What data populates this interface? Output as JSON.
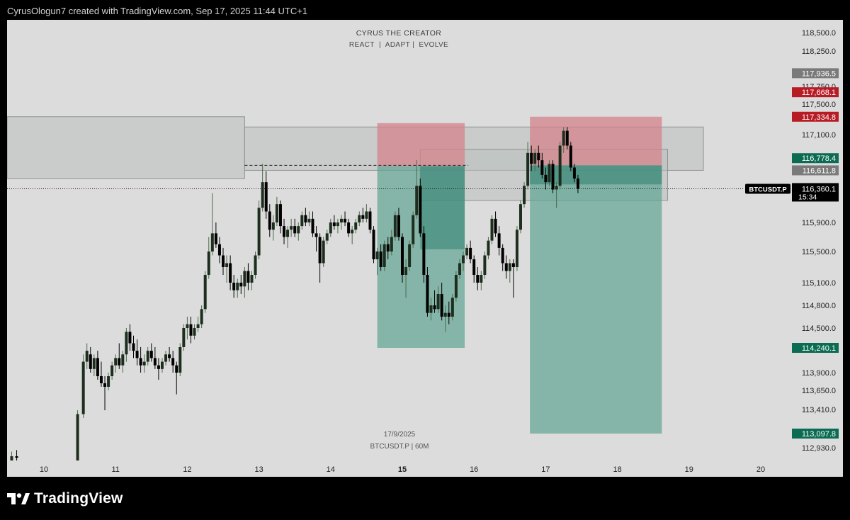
{
  "header": {
    "attribution": "CyrusOlogun7 created with TradingView.com, Sep 17, 2025 11:44 UTC+1"
  },
  "watermark": {
    "title": "CYRUS THE CREATOR",
    "subtitle": "REACT  |  ADAPT |  EVOLVE"
  },
  "footer": {
    "brand": "TradingView",
    "logo_icon": "tradingview-logo-icon"
  },
  "chart_data": {
    "type": "candlestick",
    "symbol_label": "BTCUSDT.P",
    "last_price": "116,360.1",
    "countdown": "15:34",
    "bottom_label_date": "17/9/2025",
    "bottom_label_symbol": "BTCUSDT.P | 60M",
    "x_ticks": [
      {
        "label": "10",
        "day": 10,
        "bold": false
      },
      {
        "label": "11",
        "day": 11,
        "bold": false
      },
      {
        "label": "12",
        "day": 12,
        "bold": false
      },
      {
        "label": "13",
        "day": 13,
        "bold": false
      },
      {
        "label": "14",
        "day": 14,
        "bold": false
      },
      {
        "label": "15",
        "day": 15,
        "bold": true
      },
      {
        "label": "16",
        "day": 16,
        "bold": false
      },
      {
        "label": "17",
        "day": 17,
        "bold": false
      },
      {
        "label": "18",
        "day": 18,
        "bold": false
      },
      {
        "label": "19",
        "day": 19,
        "bold": false
      },
      {
        "label": "20",
        "day": 20,
        "bold": false
      }
    ],
    "y_ticks": [
      {
        "label": "118,500.0",
        "price": 118500
      },
      {
        "label": "118,250.0",
        "price": 118250
      },
      {
        "label": "117,750.0",
        "price": 117750
      },
      {
        "label": "117,500.0",
        "price": 117500
      },
      {
        "label": "117,100.0",
        "price": 117100
      },
      {
        "label": "115,900.0",
        "price": 115900
      },
      {
        "label": "115,500.0",
        "price": 115500
      },
      {
        "label": "115,100.0",
        "price": 115100
      },
      {
        "label": "114,800.0",
        "price": 114800
      },
      {
        "label": "114,500.0",
        "price": 114500
      },
      {
        "label": "113,900.0",
        "price": 113900
      },
      {
        "label": "113,650.0",
        "price": 113650
      },
      {
        "label": "113,410.0",
        "price": 113410
      },
      {
        "label": "112,930.0",
        "price": 112930
      }
    ],
    "price_tags": [
      {
        "label": "117,936.5",
        "price": 117936.5,
        "color": "#7a7a7a"
      },
      {
        "label": "117,668.1",
        "price": 117668.1,
        "color": "#b71c25"
      },
      {
        "label": "117,334.8",
        "price": 117334.8,
        "color": "#b71c25"
      },
      {
        "label": "116,778.4",
        "price": 116778.4,
        "color": "#0b6b53"
      },
      {
        "label": "116,611.8",
        "price": 116611.8,
        "color": "#7a7a7a"
      },
      {
        "label": "114,240.1",
        "price": 114240.1,
        "color": "#0b6b53"
      },
      {
        "label": "113,097.8",
        "price": 113097.8,
        "color": "#0b6b53"
      }
    ],
    "zones": [
      {
        "name": "supply-zone-left",
        "day0": 9.5,
        "day1": 12.8,
        "top": 117334.8,
        "bottom": 116500,
        "kind": "gray"
      },
      {
        "name": "supply-zone-wide",
        "day0": 12.8,
        "day1": 19.2,
        "top": 117200,
        "bottom": 116611.8,
        "kind": "gray"
      },
      {
        "name": "supply-zone-inner",
        "day0": 15.25,
        "day1": 18.7,
        "top": 116900,
        "bottom": 116200,
        "kind": "gray"
      },
      {
        "name": "trade1-stop",
        "day0": 14.65,
        "day1": 15.87,
        "top": 117250,
        "bottom": 116670,
        "kind": "stop"
      },
      {
        "name": "trade1-target",
        "day0": 14.65,
        "day1": 15.87,
        "top": 116670,
        "bottom": 114240.1,
        "kind": "target"
      },
      {
        "name": "trade1-overlap",
        "day0": 15.25,
        "day1": 15.87,
        "top": 116670,
        "bottom": 115530,
        "kind": "deep"
      },
      {
        "name": "trade2-stop",
        "day0": 16.78,
        "day1": 18.62,
        "top": 117334.8,
        "bottom": 116680,
        "kind": "stop"
      },
      {
        "name": "trade2-target",
        "day0": 16.78,
        "day1": 18.62,
        "top": 116680,
        "bottom": 113097.8,
        "kind": "target"
      },
      {
        "name": "trade2-overlap",
        "day0": 16.78,
        "day1": 18.62,
        "top": 116680,
        "bottom": 116420,
        "kind": "deep"
      }
    ],
    "dashed_level": {
      "price": 116680,
      "day0": 12.8,
      "day1": 15.92
    },
    "current_level": 116360.1,
    "candles": [
      [
        9.55,
        112750,
        112880,
        112700,
        112820
      ],
      [
        9.62,
        112820,
        112900,
        112760,
        112800
      ],
      [
        10.47,
        112600,
        113400,
        112500,
        113350
      ],
      [
        10.55,
        113350,
        114150,
        113300,
        114050
      ],
      [
        10.6,
        114050,
        114300,
        113950,
        114200
      ],
      [
        10.65,
        114150,
        114250,
        113900,
        113950
      ],
      [
        10.7,
        113950,
        114150,
        113850,
        114100
      ],
      [
        10.75,
        114100,
        114200,
        113800,
        113850
      ],
      [
        10.8,
        113850,
        114050,
        113700,
        113750
      ],
      [
        10.85,
        113750,
        113850,
        113400,
        113700
      ],
      [
        10.9,
        113700,
        113900,
        113650,
        113850
      ],
      [
        10.95,
        113850,
        114050,
        113800,
        114000
      ],
      [
        11.0,
        114000,
        114150,
        113900,
        114100
      ],
      [
        11.05,
        114100,
        114300,
        113950,
        114000
      ],
      [
        11.1,
        114000,
        114200,
        113900,
        114150
      ],
      [
        11.15,
        114150,
        114500,
        114050,
        114450
      ],
      [
        11.2,
        114450,
        114550,
        114200,
        114300
      ],
      [
        11.25,
        114300,
        114400,
        114100,
        114200
      ],
      [
        11.3,
        114200,
        114350,
        114000,
        114100
      ],
      [
        11.35,
        114100,
        114250,
        113900,
        114000
      ],
      [
        11.4,
        114000,
        114150,
        113900,
        114050
      ],
      [
        11.45,
        114050,
        114250,
        114000,
        114200
      ],
      [
        11.5,
        114200,
        114300,
        114050,
        114100
      ],
      [
        11.55,
        114100,
        114250,
        113950,
        114000
      ],
      [
        11.6,
        114000,
        114100,
        113800,
        113950
      ],
      [
        11.65,
        113950,
        114100,
        113900,
        114050
      ],
      [
        11.7,
        114050,
        114200,
        114000,
        114150
      ],
      [
        11.75,
        114150,
        114250,
        114050,
        114100
      ],
      [
        11.8,
        114100,
        114200,
        113900,
        114000
      ],
      [
        11.85,
        114000,
        114050,
        113600,
        113900
      ],
      [
        11.9,
        113900,
        114300,
        113850,
        114250
      ],
      [
        11.95,
        114250,
        114550,
        114200,
        114500
      ],
      [
        12.0,
        114500,
        114650,
        114350,
        114550
      ],
      [
        12.05,
        114550,
        114650,
        114300,
        114400
      ],
      [
        12.1,
        114400,
        114550,
        114350,
        114500
      ],
      [
        12.15,
        114500,
        114650,
        114450,
        114550
      ],
      [
        12.2,
        114550,
        114800,
        114500,
        114750
      ],
      [
        12.25,
        114750,
        115250,
        114700,
        115200
      ],
      [
        12.3,
        115200,
        115700,
        115150,
        115500
      ],
      [
        12.35,
        115500,
        116300,
        115450,
        115750
      ],
      [
        12.4,
        115750,
        115900,
        115550,
        115600
      ],
      [
        12.45,
        115600,
        115700,
        115350,
        115450
      ],
      [
        12.5,
        115450,
        115550,
        115200,
        115300
      ],
      [
        12.55,
        115300,
        115450,
        115100,
        115350
      ],
      [
        12.6,
        115350,
        115450,
        115000,
        115100
      ],
      [
        12.65,
        115100,
        115200,
        114900,
        115000
      ],
      [
        12.7,
        115000,
        115150,
        114900,
        115100
      ],
      [
        12.75,
        115100,
        115200,
        114950,
        115050
      ],
      [
        12.8,
        115050,
        115300,
        114900,
        115250
      ],
      [
        12.85,
        115250,
        115350,
        115000,
        115100
      ],
      [
        12.9,
        115100,
        115250,
        115000,
        115200
      ],
      [
        12.95,
        115200,
        115500,
        115150,
        115450
      ],
      [
        13.0,
        115450,
        116200,
        115400,
        116100
      ],
      [
        13.05,
        116100,
        116700,
        116050,
        116450
      ],
      [
        13.1,
        116450,
        116600,
        115950,
        116050
      ],
      [
        13.15,
        116050,
        116150,
        115700,
        115800
      ],
      [
        13.2,
        115800,
        116000,
        115650,
        115900
      ],
      [
        13.25,
        115900,
        116250,
        115850,
        116150
      ],
      [
        13.3,
        116150,
        116200,
        115750,
        115850
      ],
      [
        13.35,
        115850,
        115950,
        115600,
        115700
      ],
      [
        13.4,
        115700,
        115850,
        115550,
        115800
      ],
      [
        13.45,
        115800,
        115950,
        115700,
        115850
      ],
      [
        13.5,
        115850,
        115950,
        115700,
        115750
      ],
      [
        13.55,
        115750,
        115900,
        115650,
        115850
      ],
      [
        13.6,
        115850,
        116050,
        115800,
        116000
      ],
      [
        13.65,
        116000,
        116100,
        115850,
        115900
      ],
      [
        13.7,
        115900,
        116050,
        115850,
        115950
      ],
      [
        13.75,
        115950,
        116050,
        115700,
        115750
      ],
      [
        13.8,
        115750,
        115850,
        115500,
        115700
      ],
      [
        13.85,
        115700,
        115750,
        115100,
        115350
      ],
      [
        13.9,
        115350,
        115700,
        115300,
        115650
      ],
      [
        13.95,
        115650,
        115800,
        115600,
        115750
      ],
      [
        14.0,
        115750,
        115950,
        115700,
        115900
      ],
      [
        14.05,
        115900,
        116000,
        115800,
        115850
      ],
      [
        14.1,
        115850,
        115950,
        115750,
        115900
      ],
      [
        14.15,
        115900,
        116000,
        115800,
        115950
      ],
      [
        14.2,
        115950,
        116050,
        115850,
        115900
      ],
      [
        14.25,
        115900,
        115950,
        115700,
        115750
      ],
      [
        14.3,
        115750,
        115850,
        115600,
        115800
      ],
      [
        14.35,
        115800,
        115950,
        115750,
        115900
      ],
      [
        14.4,
        115900,
        116050,
        115850,
        116000
      ],
      [
        14.45,
        116000,
        116100,
        115900,
        115950
      ],
      [
        14.5,
        115950,
        116150,
        115900,
        116050
      ],
      [
        14.55,
        116050,
        116100,
        115750,
        115800
      ],
      [
        14.6,
        115800,
        115850,
        115350,
        115400
      ],
      [
        14.65,
        115400,
        115550,
        115200,
        115500
      ],
      [
        14.7,
        115500,
        115600,
        115250,
        115300
      ],
      [
        14.75,
        115300,
        115650,
        115250,
        115600
      ],
      [
        14.8,
        115600,
        115700,
        115400,
        115500
      ],
      [
        14.85,
        115500,
        115800,
        115450,
        115700
      ],
      [
        14.9,
        115700,
        116050,
        115650,
        116000
      ],
      [
        14.95,
        116000,
        116100,
        115650,
        115700
      ],
      [
        15.0,
        115700,
        115750,
        115100,
        115200
      ],
      [
        15.05,
        115200,
        115400,
        114900,
        115300
      ],
      [
        15.1,
        115300,
        115650,
        115250,
        115600
      ],
      [
        15.15,
        115600,
        116050,
        115550,
        116000
      ],
      [
        15.2,
        116000,
        116750,
        115950,
        116400
      ],
      [
        15.25,
        116400,
        116500,
        115700,
        115750
      ],
      [
        15.3,
        115750,
        115850,
        115100,
        115200
      ],
      [
        15.35,
        115200,
        115300,
        114650,
        114700
      ],
      [
        15.4,
        114700,
        114900,
        114600,
        114800
      ],
      [
        15.45,
        114800,
        115000,
        114700,
        114750
      ],
      [
        15.5,
        114750,
        115050,
        114700,
        114950
      ],
      [
        15.55,
        114950,
        115100,
        114600,
        114650
      ],
      [
        15.6,
        114650,
        114800,
        114450,
        114700
      ],
      [
        15.65,
        114700,
        114850,
        114550,
        114650
      ],
      [
        15.7,
        114650,
        114950,
        114600,
        114900
      ],
      [
        15.75,
        114900,
        115250,
        114850,
        115200
      ],
      [
        15.8,
        115200,
        115400,
        115150,
        115350
      ],
      [
        15.85,
        115350,
        115500,
        115250,
        115450
      ],
      [
        15.9,
        115450,
        115600,
        115400,
        115550
      ],
      [
        15.95,
        115550,
        115650,
        115350,
        115400
      ],
      [
        16.0,
        115400,
        115450,
        115100,
        115200
      ],
      [
        16.05,
        115200,
        115300,
        115000,
        115100
      ],
      [
        16.1,
        115100,
        115250,
        115000,
        115200
      ],
      [
        16.15,
        115200,
        115500,
        115150,
        115450
      ],
      [
        16.2,
        115450,
        115700,
        115400,
        115650
      ],
      [
        16.25,
        115650,
        116000,
        115600,
        115950
      ],
      [
        16.3,
        115950,
        116050,
        115700,
        115750
      ],
      [
        16.35,
        115750,
        115850,
        115450,
        115550
      ],
      [
        16.4,
        115550,
        115600,
        115250,
        115350
      ],
      [
        16.45,
        115350,
        115450,
        115150,
        115250
      ],
      [
        16.5,
        115250,
        115400,
        115100,
        115350
      ],
      [
        16.55,
        115350,
        115400,
        114900,
        115300
      ],
      [
        16.6,
        115300,
        115850,
        115250,
        115800
      ],
      [
        16.65,
        115800,
        116200,
        115750,
        116150
      ],
      [
        16.7,
        116150,
        116450,
        116100,
        116400
      ],
      [
        16.75,
        116400,
        117000,
        116350,
        116850
      ],
      [
        16.8,
        116850,
        116950,
        116600,
        116700
      ],
      [
        16.85,
        116700,
        116900,
        116600,
        116850
      ],
      [
        16.9,
        116850,
        116950,
        116650,
        116750
      ],
      [
        16.95,
        116750,
        116850,
        116500,
        116550
      ],
      [
        17.0,
        116550,
        116650,
        116350,
        116450
      ],
      [
        17.05,
        116450,
        116750,
        116400,
        116700
      ],
      [
        17.1,
        116700,
        116750,
        116300,
        116350
      ],
      [
        17.15,
        116350,
        116450,
        116100,
        116400
      ],
      [
        17.2,
        116400,
        117000,
        116350,
        116950
      ],
      [
        17.25,
        116950,
        117200,
        116850,
        117150
      ],
      [
        17.3,
        117150,
        117200,
        116900,
        116950
      ],
      [
        17.35,
        116950,
        117000,
        116600,
        116650
      ],
      [
        17.4,
        116650,
        116700,
        116450,
        116500
      ],
      [
        17.45,
        116500,
        116550,
        116300,
        116360.1
      ]
    ]
  }
}
